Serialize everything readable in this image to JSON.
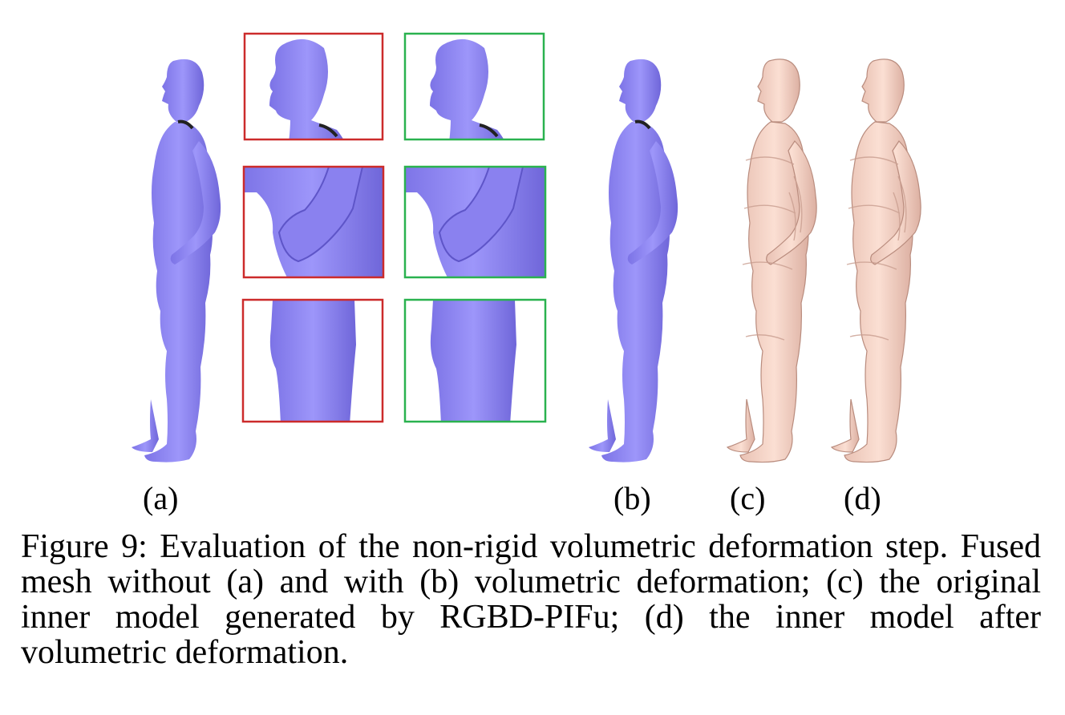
{
  "figure": {
    "labels": {
      "a": "(a)",
      "b": "(b)",
      "c": "(c)",
      "d": "(d)"
    },
    "colors": {
      "fused_mesh": "#8f86f4",
      "fused_mesh_shade": "#6d64d8",
      "inner_model": "#f6d3c6",
      "inner_model_shade": "#c9a194",
      "without_box": "#cc2b2b",
      "with_box": "#2ab24f"
    }
  },
  "caption": {
    "text": "Figure 9: Evaluation of the non-rigid volumetric deformation step. Fused mesh without (a) and with (b) volumetric deformation; (c) the original inner model generated by RGBD-PIFu; (d) the inner model after volumetric deformation."
  }
}
